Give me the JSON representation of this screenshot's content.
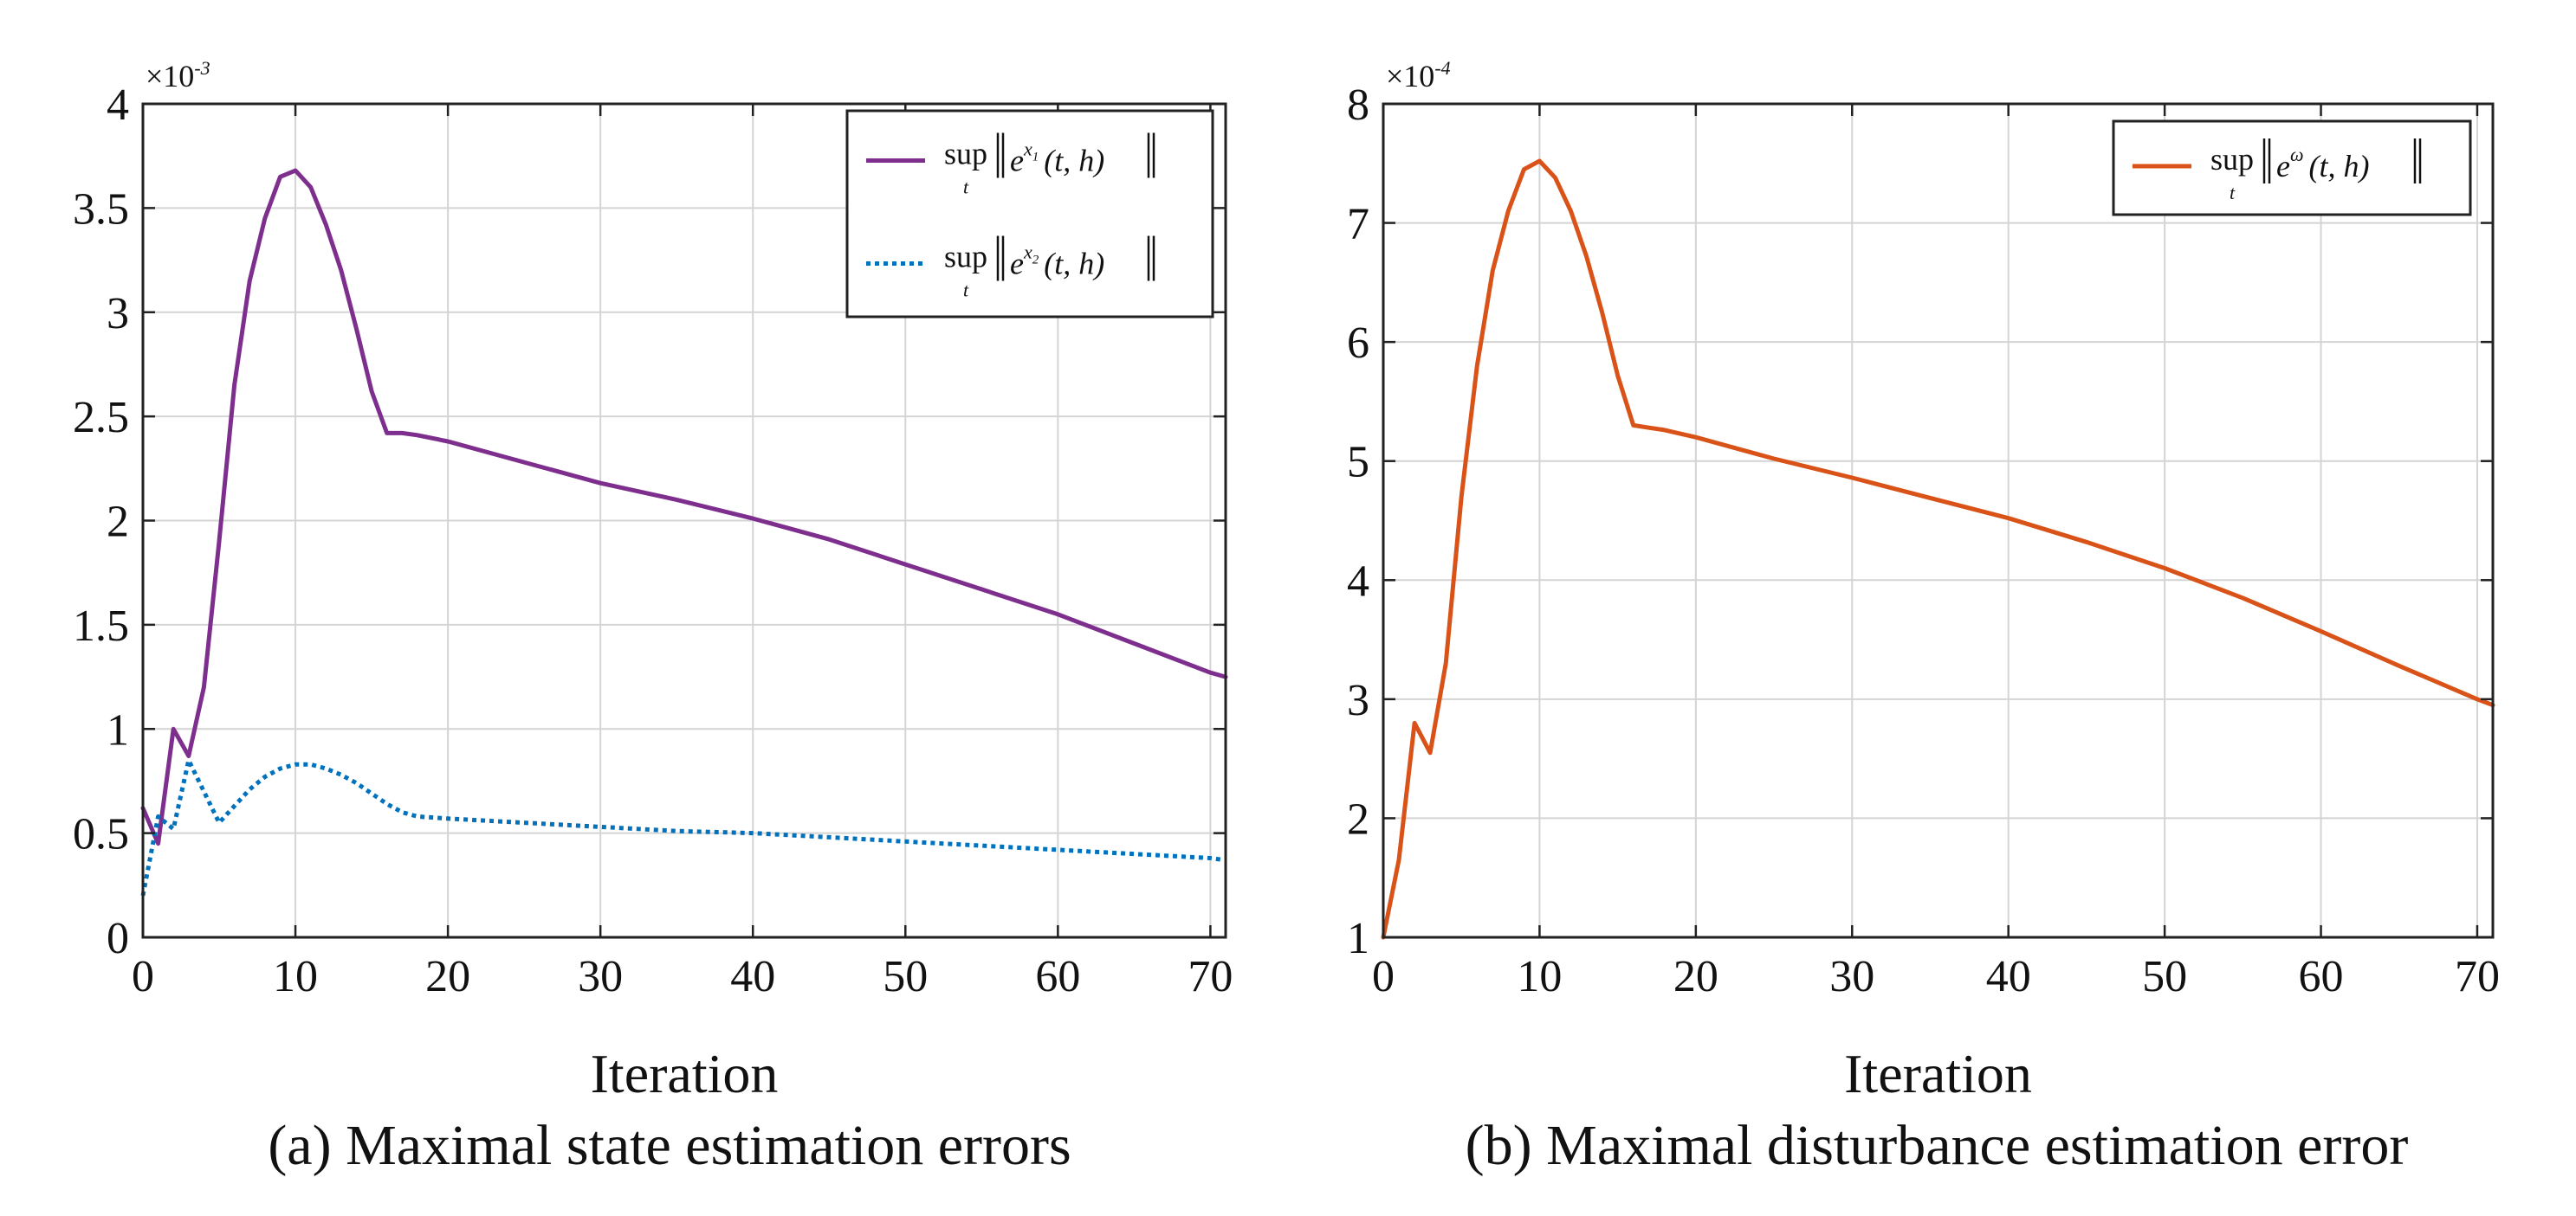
{
  "chart_data": [
    {
      "type": "line",
      "title": "",
      "caption": "(a) Maximal state estimation errors",
      "xlabel": "Iteration",
      "ylabel": "",
      "multiplier_label": "×10",
      "multiplier_exp": "-3",
      "xlim": [
        0,
        71
      ],
      "ylim": [
        0,
        4
      ],
      "xticks": [
        0,
        10,
        20,
        30,
        40,
        50,
        60,
        70
      ],
      "yticks": [
        0,
        0.5,
        1,
        1.5,
        2,
        2.5,
        3,
        3.5,
        4
      ],
      "ytick_labels": [
        "0",
        "0.5",
        "1",
        "1.5",
        "2",
        "2.5",
        "3",
        "3.5",
        "4"
      ],
      "grid": true,
      "legend_position": "top-right",
      "series": [
        {
          "name": "sup‖e^{x1}(t,h)‖",
          "legend_sup": "sup",
          "legend_sub": "t",
          "legend_base": "e",
          "legend_exp": "x",
          "legend_exp_sub": "1",
          "legend_args": "(t, h)",
          "color": "#7e2f8e",
          "dash": "solid",
          "x": [
            0,
            1,
            2,
            3,
            4,
            5,
            6,
            7,
            8,
            9,
            10,
            11,
            12,
            13,
            14,
            15,
            16,
            17,
            18,
            20,
            25,
            30,
            35,
            40,
            45,
            50,
            55,
            60,
            65,
            70,
            71
          ],
          "y": [
            0.62,
            0.45,
            1.0,
            0.87,
            1.2,
            1.9,
            2.65,
            3.15,
            3.45,
            3.65,
            3.68,
            3.6,
            3.42,
            3.2,
            2.92,
            2.62,
            2.42,
            2.42,
            2.41,
            2.38,
            2.28,
            2.18,
            2.1,
            2.01,
            1.91,
            1.79,
            1.67,
            1.55,
            1.41,
            1.27,
            1.25
          ]
        },
        {
          "name": "sup‖e^{x2}(t,h)‖",
          "legend_sup": "sup",
          "legend_sub": "t",
          "legend_base": "e",
          "legend_exp": "x",
          "legend_exp_sub": "2",
          "legend_args": "(t, h)",
          "color": "#0072bd",
          "dash": "dotted",
          "x": [
            0,
            1,
            2,
            3,
            4,
            5,
            6,
            7,
            8,
            9,
            10,
            11,
            12,
            13,
            14,
            15,
            16,
            17,
            18,
            20,
            25,
            30,
            35,
            40,
            45,
            50,
            55,
            60,
            65,
            70,
            71
          ],
          "y": [
            0.2,
            0.58,
            0.52,
            0.85,
            0.7,
            0.55,
            0.63,
            0.71,
            0.77,
            0.81,
            0.83,
            0.83,
            0.81,
            0.78,
            0.74,
            0.69,
            0.64,
            0.6,
            0.58,
            0.57,
            0.55,
            0.53,
            0.51,
            0.5,
            0.48,
            0.46,
            0.44,
            0.42,
            0.4,
            0.38,
            0.37
          ]
        }
      ]
    },
    {
      "type": "line",
      "title": "",
      "caption": "(b) Maximal disturbance estimation error",
      "xlabel": "Iteration",
      "ylabel": "",
      "multiplier_label": "×10",
      "multiplier_exp": "-4",
      "xlim": [
        0,
        71
      ],
      "ylim": [
        1,
        8
      ],
      "xticks": [
        0,
        10,
        20,
        30,
        40,
        50,
        60,
        70
      ],
      "yticks": [
        1,
        2,
        3,
        4,
        5,
        6,
        7,
        8
      ],
      "ytick_labels": [
        "1",
        "2",
        "3",
        "4",
        "5",
        "6",
        "7",
        "8"
      ],
      "grid": true,
      "legend_position": "top-right",
      "series": [
        {
          "name": "sup‖e^{ω}(t,h)‖",
          "legend_sup": "sup",
          "legend_sub": "t",
          "legend_base": "e",
          "legend_exp": "ω",
          "legend_exp_sub": "",
          "legend_args": "(t, h)",
          "color": "#d95319",
          "dash": "solid",
          "x": [
            0,
            1,
            2,
            3,
            4,
            5,
            6,
            7,
            8,
            9,
            10,
            11,
            12,
            13,
            14,
            15,
            16,
            17,
            18,
            20,
            25,
            30,
            35,
            40,
            45,
            50,
            55,
            60,
            65,
            70,
            71
          ],
          "y": [
            1.0,
            1.65,
            2.8,
            2.55,
            3.3,
            4.7,
            5.8,
            6.6,
            7.1,
            7.45,
            7.52,
            7.38,
            7.1,
            6.72,
            6.25,
            5.72,
            5.3,
            5.28,
            5.26,
            5.2,
            5.02,
            4.86,
            4.69,
            4.52,
            4.32,
            4.1,
            3.85,
            3.57,
            3.28,
            3.0,
            2.95
          ]
        }
      ]
    }
  ]
}
